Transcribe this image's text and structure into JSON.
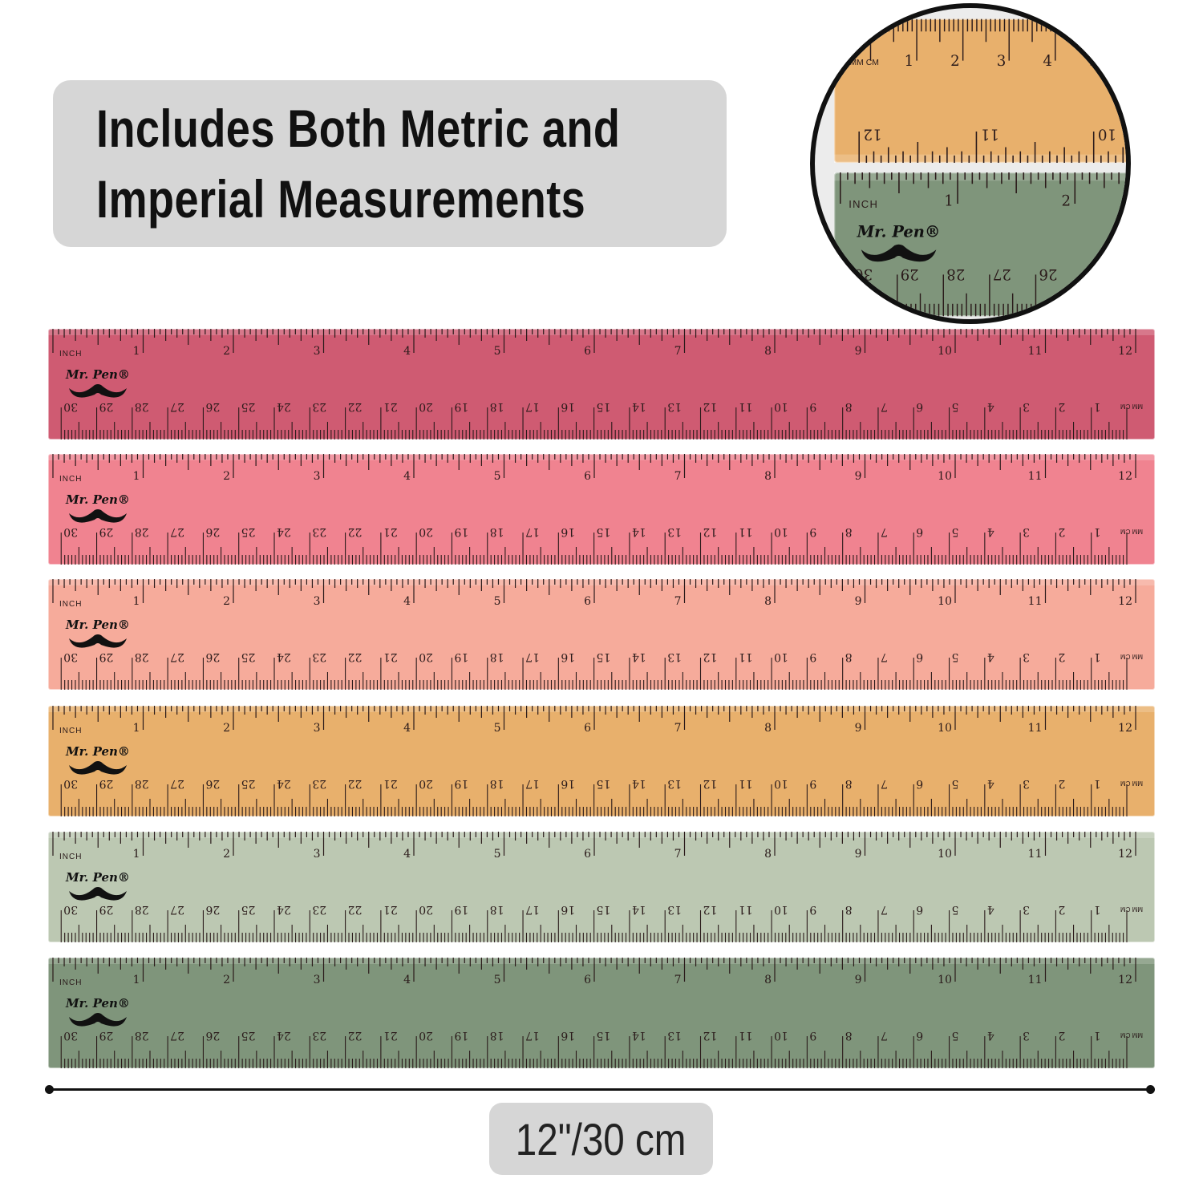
{
  "headline": {
    "line1": "Includes Both Metric and",
    "line2": "Imperial Measurements"
  },
  "ruler_text": {
    "inch_unit": "INCH",
    "metric_unit_top": "MM",
    "metric_unit_bottom": "CM",
    "brand": "Mr. Pen®"
  },
  "inch_labels": [
    "1",
    "2",
    "3",
    "4",
    "5",
    "6",
    "7",
    "8",
    "9",
    "10",
    "11",
    "12"
  ],
  "cm_labels": [
    "1",
    "2",
    "3",
    "4",
    "5",
    "6",
    "7",
    "8",
    "9",
    "10",
    "11",
    "12",
    "13",
    "14",
    "15",
    "16",
    "17",
    "18",
    "19",
    "20",
    "21",
    "22",
    "23",
    "24",
    "25",
    "26",
    "27",
    "28",
    "29",
    "30"
  ],
  "rulers": [
    {
      "color": "pink-red",
      "fill": "#cf5b72"
    },
    {
      "color": "coral-pink",
      "fill": "#f08390"
    },
    {
      "color": "peach",
      "fill": "#f6ab9b"
    },
    {
      "color": "orange",
      "fill": "#e8b06c"
    },
    {
      "color": "sage",
      "fill": "#bcc8b2"
    },
    {
      "color": "olive-green",
      "fill": "#7f957b"
    }
  ],
  "magnifier": {
    "top_ruler_fill": "#e8b06c",
    "bottom_ruler_fill": "#7f957b"
  },
  "dimension_label": "12\"/30 cm"
}
